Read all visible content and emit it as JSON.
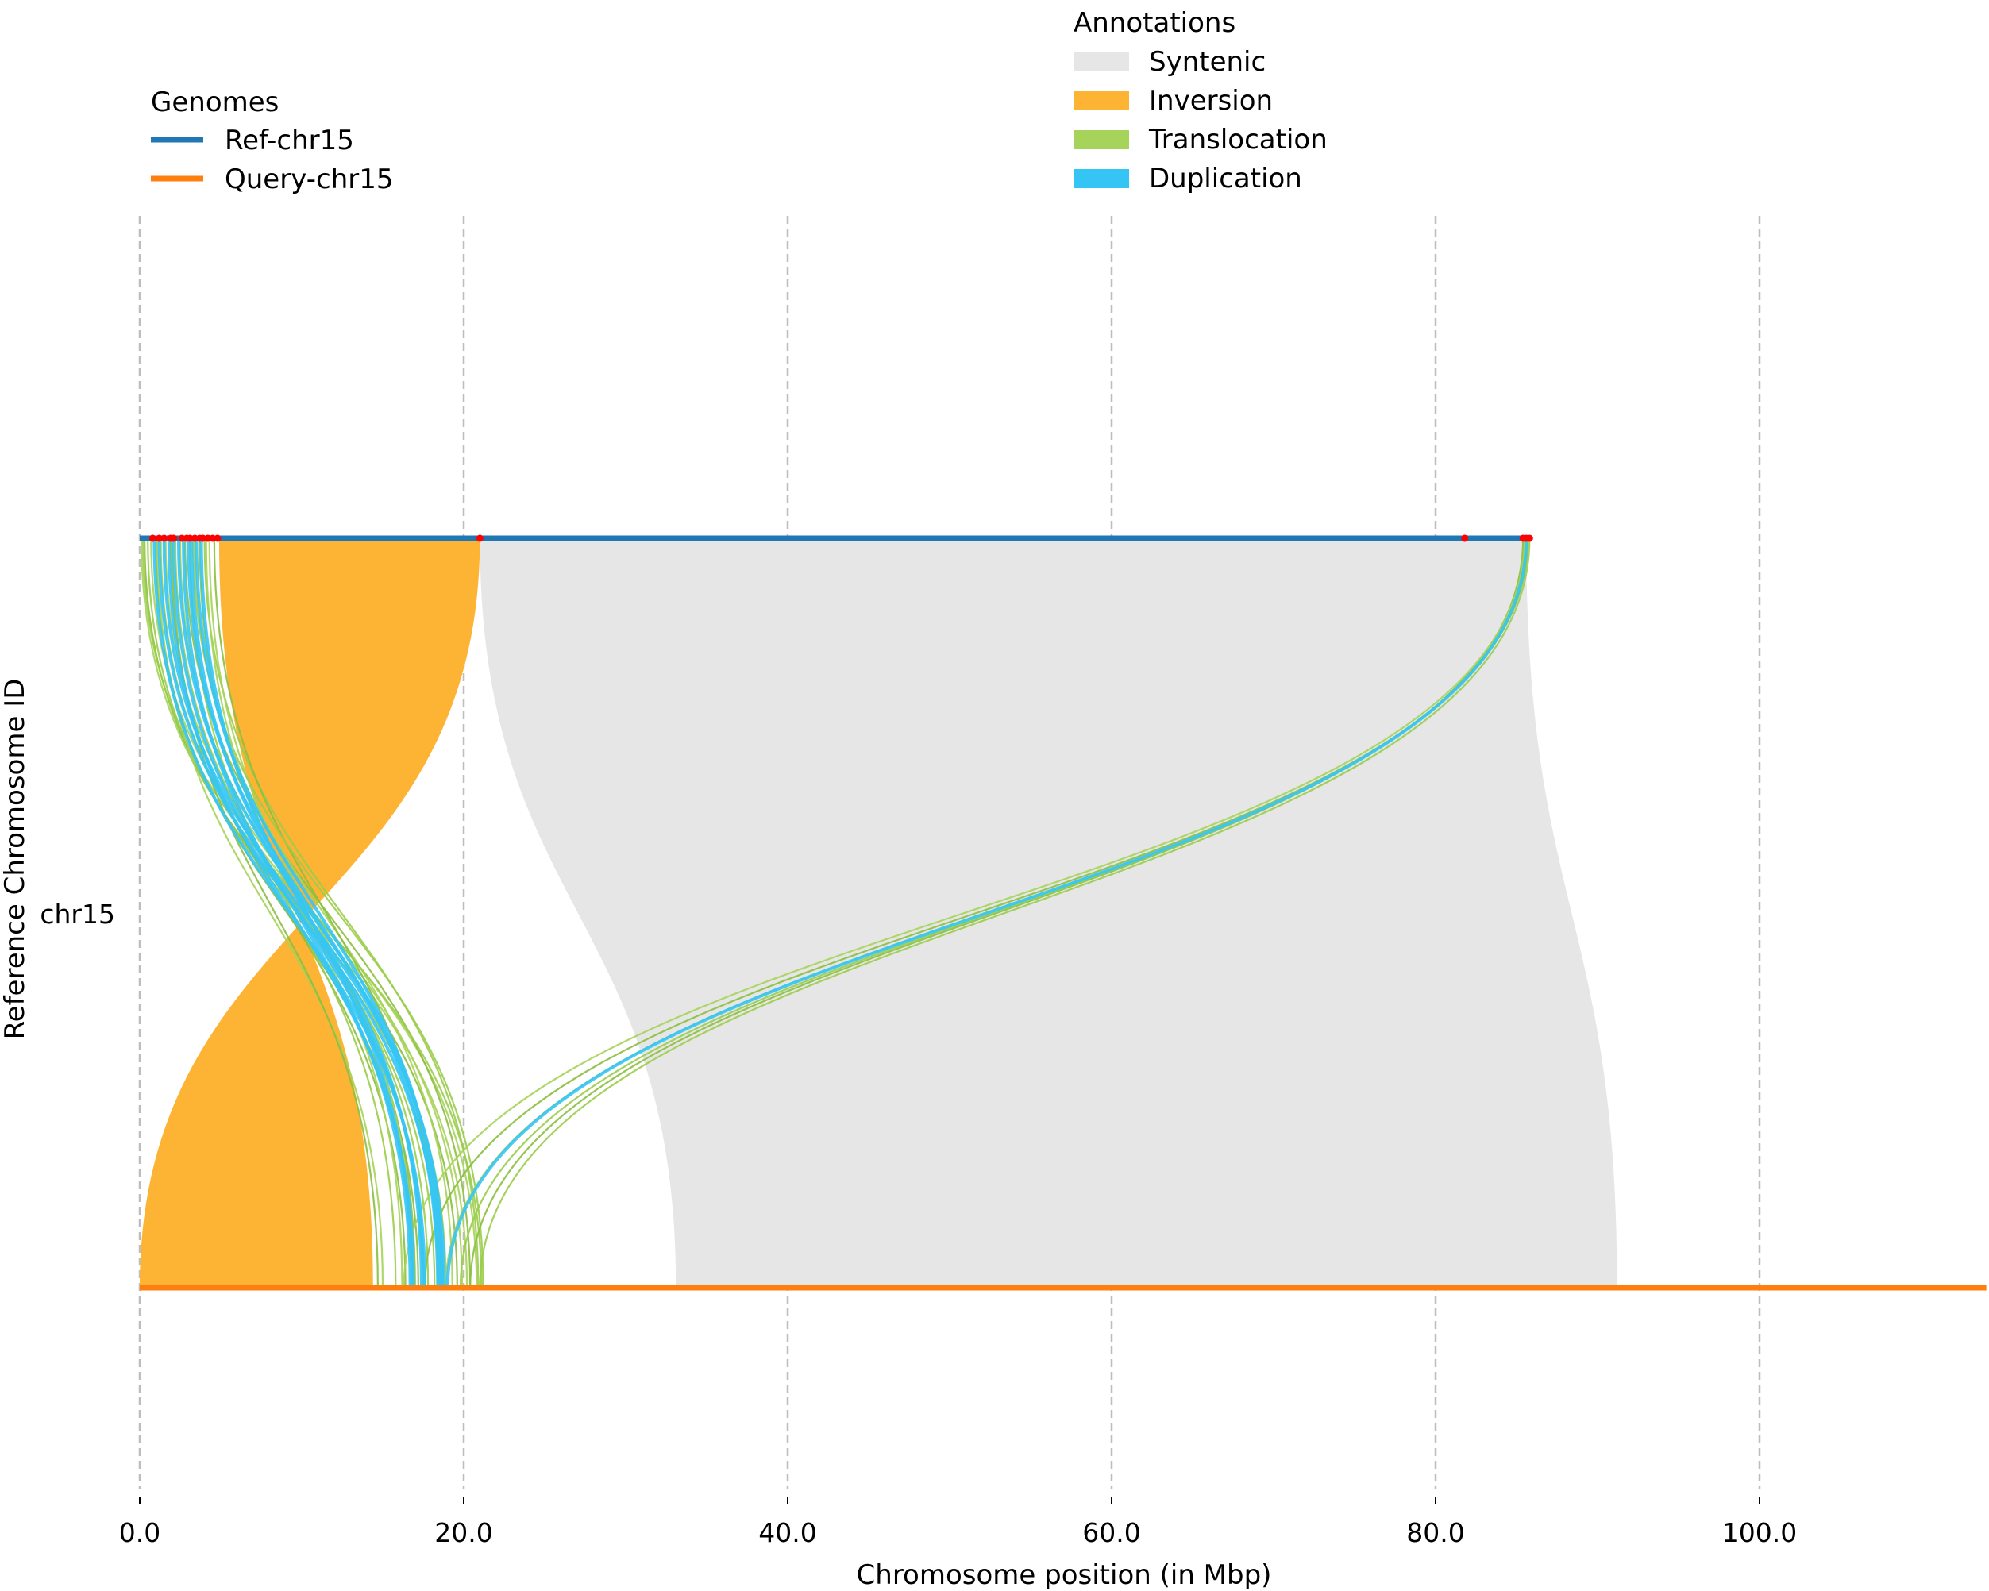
{
  "chart_data": {
    "type": "synteny",
    "xlabel": "Chromosome position (in Mbp)",
    "ylabel": "Reference Chromosome ID",
    "xlim": [
      0,
      114
    ],
    "x_ticks": [
      0,
      20,
      40,
      60,
      80,
      100
    ],
    "x_tick_labels": [
      "0.0",
      "20.0",
      "40.0",
      "60.0",
      "80.0",
      "100.0"
    ],
    "grid": "vertical dashed",
    "y_tick_label": "chr15",
    "genomes_legend": {
      "title": "Genomes",
      "placement": "top-left",
      "items": [
        {
          "label": "Ref-chr15",
          "color": "#1f77b4"
        },
        {
          "label": "Query-chr15",
          "color": "#ff7f0e"
        }
      ]
    },
    "annotations_legend": {
      "title": "Annotations",
      "placement": "top-center",
      "items": [
        {
          "label": "Syntenic",
          "color": "#e6e6e6"
        },
        {
          "label": "Inversion",
          "color": "#fdb334"
        },
        {
          "label": "Translocation",
          "color": "#a6d35a"
        },
        {
          "label": "Duplication",
          "color": "#35c5f4"
        }
      ]
    },
    "chromosomes": [
      {
        "name": "Ref-chr15",
        "start": 0,
        "end": 85.8,
        "color": "#1f77b4"
      },
      {
        "name": "Query-chr15",
        "start": 0,
        "end": 114,
        "color": "#ff7f0e"
      }
    ],
    "syntenic_blocks": [
      {
        "ref": [
          21.0,
          85.6
        ],
        "query": [
          33.1,
          91.2
        ]
      }
    ],
    "inversions": [
      {
        "ref": [
          4.9,
          21.0
        ],
        "query": [
          0.0,
          14.4
        ]
      }
    ],
    "breakpoints_ref": [
      0.8,
      1.2,
      1.5,
      1.9,
      2.1,
      2.6,
      2.9,
      3.1,
      3.4,
      3.7,
      3.9,
      4.2,
      4.5,
      4.8,
      21.0,
      81.8,
      85.4,
      85.6,
      85.8
    ],
    "translocations": [
      {
        "ref": 0.1,
        "query": 20.2
      },
      {
        "ref": 0.3,
        "query": 19.6
      },
      {
        "ref": 0.5,
        "query": 18.9
      },
      {
        "ref": 0.7,
        "query": 20.8
      },
      {
        "ref": 1.0,
        "query": 17.2
      },
      {
        "ref": 1.3,
        "query": 18.2
      },
      {
        "ref": 1.6,
        "query": 19.9
      },
      {
        "ref": 1.9,
        "query": 16.4
      },
      {
        "ref": 2.2,
        "query": 17.8
      },
      {
        "ref": 2.5,
        "query": 18.6
      },
      {
        "ref": 2.8,
        "query": 20.4
      },
      {
        "ref": 3.1,
        "query": 15.8
      },
      {
        "ref": 3.4,
        "query": 19.3
      },
      {
        "ref": 3.7,
        "query": 17.0
      },
      {
        "ref": 4.0,
        "query": 20.9
      },
      {
        "ref": 4.3,
        "query": 16.9
      },
      {
        "ref": 4.6,
        "query": 18.4
      },
      {
        "ref": 0.2,
        "query": 21.1
      },
      {
        "ref": 1.1,
        "query": 15.0
      },
      {
        "ref": 2.0,
        "query": 14.7
      },
      {
        "ref": 3.3,
        "query": 21.2
      },
      {
        "ref": 4.1,
        "query": 16.2
      },
      {
        "ref": 85.4,
        "query": 20.4
      },
      {
        "ref": 85.5,
        "query": 19.8
      },
      {
        "ref": 85.6,
        "query": 18.9
      },
      {
        "ref": 85.7,
        "query": 17.6
      },
      {
        "ref": 85.8,
        "query": 21.0
      },
      {
        "ref": 85.5,
        "query": 16.3
      }
    ],
    "duplications": [
      {
        "ref": 0.9,
        "query": 17.6
      },
      {
        "ref": 1.2,
        "query": 18.5
      },
      {
        "ref": 1.5,
        "query": 18.8
      },
      {
        "ref": 1.8,
        "query": 16.9
      },
      {
        "ref": 2.1,
        "query": 17.5
      },
      {
        "ref": 2.4,
        "query": 18.7
      },
      {
        "ref": 2.7,
        "query": 16.7
      },
      {
        "ref": 3.0,
        "query": 18.4
      },
      {
        "ref": 3.2,
        "query": 17.4
      },
      {
        "ref": 3.5,
        "query": 18.6
      },
      {
        "ref": 3.8,
        "query": 16.8
      },
      {
        "ref": 85.6,
        "query": 19.0
      }
    ]
  }
}
